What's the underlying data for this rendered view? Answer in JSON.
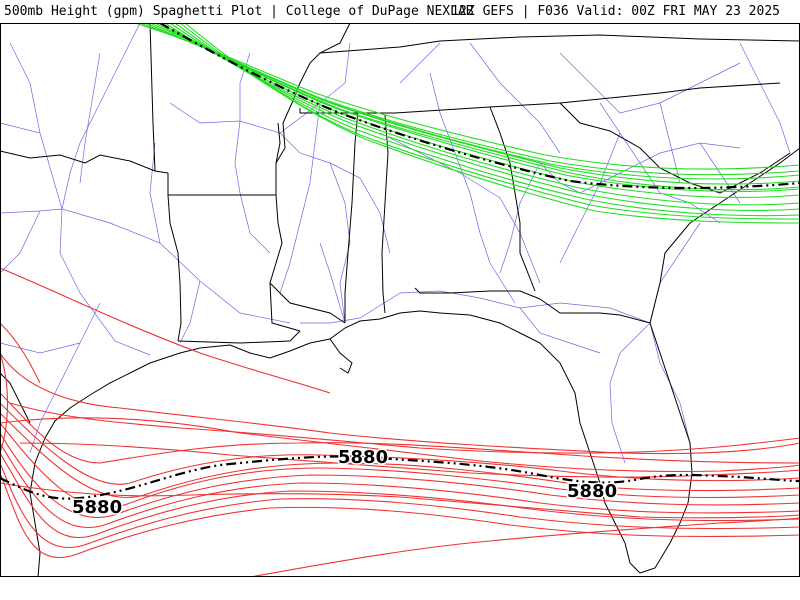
{
  "header": {
    "left_title": "500mb Height (gpm) Spaghetti Plot | College of DuPage NEXLAB",
    "right_title": "12Z GEFS | F036 Valid: 00Z FRI MAY 23 2025"
  },
  "contours": {
    "north": {
      "color": "#22dd22",
      "mean_color": "#000000"
    },
    "south": {
      "color": "#ee3333",
      "mean_color": "#000000",
      "labels": [
        "5880",
        "5880",
        "5880"
      ]
    }
  },
  "map": {
    "state_border_color": "#000000",
    "highway_color": "#6a6ae6",
    "region": "Southeastern United States and Gulf of Mexico"
  }
}
